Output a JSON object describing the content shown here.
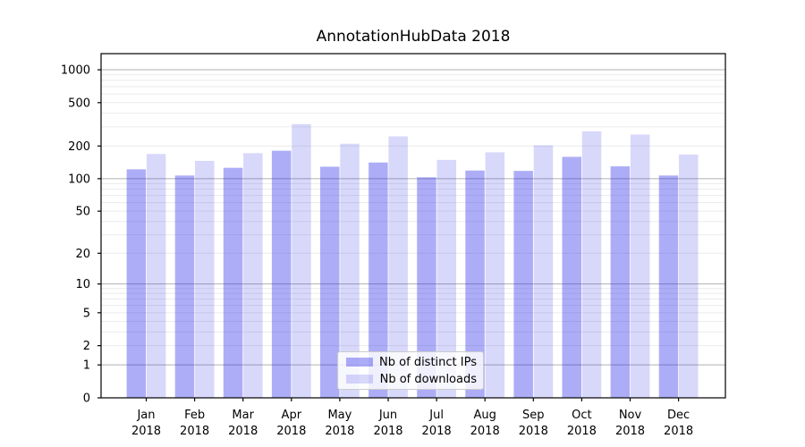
{
  "chart_data": {
    "type": "bar",
    "title": "AnnotationHubData 2018",
    "categories": [
      "Jan",
      "Feb",
      "Mar",
      "Apr",
      "May",
      "Jun",
      "Jul",
      "Aug",
      "Sep",
      "Oct",
      "Nov",
      "Dec"
    ],
    "year_label": "2018",
    "series": [
      {
        "name": "Nb of distinct IPs",
        "values": [
          122,
          107,
          126,
          181,
          129,
          141,
          103,
          119,
          118,
          159,
          130,
          107
        ]
      },
      {
        "name": "Nb of downloads",
        "values": [
          169,
          146,
          172,
          318,
          210,
          245,
          149,
          175,
          203,
          273,
          255,
          167
        ]
      }
    ],
    "y_scale": "log10(value+1)",
    "y_ticks": [
      1000,
      500,
      200,
      100,
      50,
      20,
      10,
      5,
      2,
      1,
      0
    ],
    "ylim": [
      0,
      1400
    ],
    "grid": "horizontal major and minor gridlines",
    "legend_position": "inside plot, lower middle",
    "colors": {
      "bar_ips": "rgba(40,40,235,0.38)",
      "bar_downloads": "rgba(40,40,235,0.18)",
      "grid_major": "#b0b0b0",
      "grid_minor": "#ebebeb",
      "axis": "#000000",
      "text": "#000000"
    }
  }
}
